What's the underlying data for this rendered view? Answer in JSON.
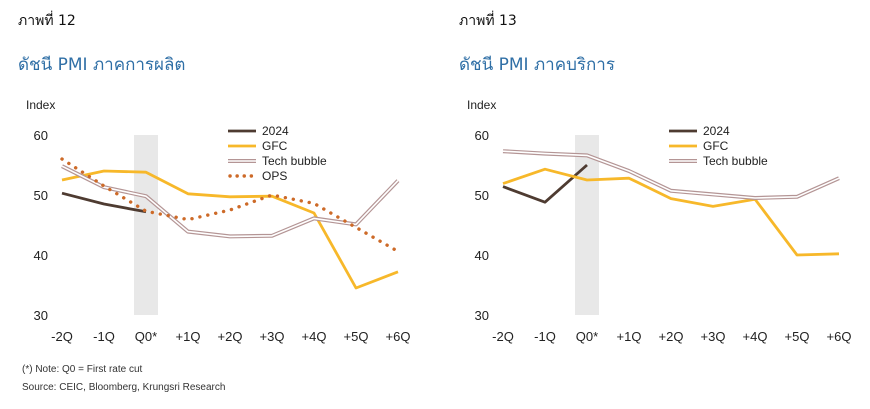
{
  "figures": [
    {
      "label": "ภาพที่ 12",
      "title": "ดัชนี PMI ภาคการผลิต"
    },
    {
      "label": "ภาพที่ 13",
      "title": "ดัชนี PMI ภาคบริการ"
    }
  ],
  "chart_data": [
    {
      "type": "line",
      "ylabel": "Index",
      "ylim": [
        30,
        60
      ],
      "yticks": [
        30,
        40,
        50,
        60
      ],
      "categories": [
        "-2Q",
        "-1Q",
        "Q0*",
        "+1Q",
        "+2Q",
        "+3Q",
        "+4Q",
        "+5Q",
        "+6Q"
      ],
      "highlight_category": "Q0*",
      "legend_position": "top-center",
      "series": [
        {
          "name": "2024",
          "color": "#4e3b31",
          "style": "solid",
          "values": [
            50.3,
            48.5,
            47.2,
            null,
            null,
            null,
            null,
            null,
            null
          ]
        },
        {
          "name": "GFC",
          "color": "#f7b82a",
          "style": "solid",
          "values": [
            52.5,
            54.0,
            53.8,
            50.2,
            49.7,
            49.8,
            47.0,
            34.5,
            37.2
          ]
        },
        {
          "name": "Tech bubble",
          "color": "#b49595",
          "style": "double",
          "values": [
            54.8,
            51.3,
            49.8,
            43.9,
            43.1,
            43.2,
            46.1,
            45.1,
            52.4
          ]
        },
        {
          "name": "OPS",
          "color": "#cd6a28",
          "style": "dotted",
          "values": [
            56.0,
            51.5,
            47.3,
            45.9,
            47.5,
            50.0,
            48.6,
            44.6,
            40.6
          ]
        }
      ]
    },
    {
      "type": "line",
      "ylabel": "Index",
      "ylim": [
        30,
        60
      ],
      "yticks": [
        30,
        40,
        50,
        60
      ],
      "categories": [
        "-2Q",
        "-1Q",
        "Q0*",
        "+1Q",
        "+2Q",
        "+3Q",
        "+4Q",
        "+5Q",
        "+6Q"
      ],
      "highlight_category": "Q0*",
      "legend_position": "top-center",
      "series": [
        {
          "name": "2024",
          "color": "#4e3b31",
          "style": "solid",
          "values": [
            51.4,
            48.8,
            55.0,
            null,
            null,
            null,
            null,
            null,
            null
          ]
        },
        {
          "name": "GFC",
          "color": "#f7b82a",
          "style": "solid",
          "values": [
            51.9,
            54.3,
            52.5,
            52.8,
            49.4,
            48.1,
            49.3,
            40.0,
            40.2
          ]
        },
        {
          "name": "Tech bubble",
          "color": "#b49595",
          "style": "double",
          "values": [
            57.3,
            56.9,
            56.6,
            54.0,
            50.7,
            50.1,
            49.5,
            49.7,
            52.8
          ]
        }
      ]
    }
  ],
  "notes": {
    "note": "(*) Note: Q0 = First rate cut",
    "source": "Source: CEIC, Bloomberg, Krungsri Research"
  }
}
